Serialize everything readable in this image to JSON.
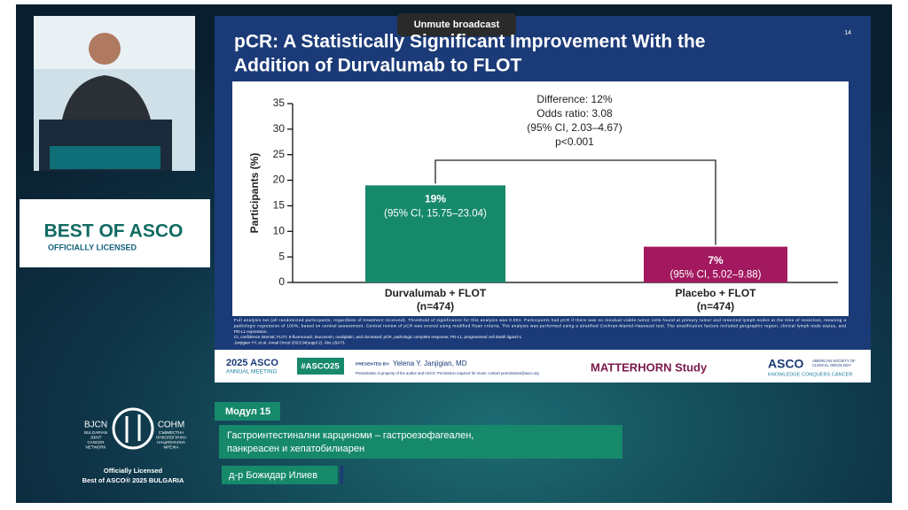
{
  "button": "Unmute broadcast",
  "slide": {
    "title_lines": [
      "pCR: A Statistically Significant Improvement With the",
      "Addition of Durvalumab to FLOT"
    ],
    "number": "14",
    "footnotes": [
      "Full analysis set (all randomized participants, regardless of treatment received). Threshold of significance for this analysis was 0.001. Participants had pCR if there was no residual viable tumor cells found at primary tumor and resected lymph nodes at the time of resection, meaning a",
      "pathologic regression of 100%, based on central assessment. Central review of pCR was scored using modified Ryan criteria. The analysis was performed using a stratified Cochran-Mantel-Haenszel test. The stratification factors included geographic region, clinical lymph node status, and",
      "PD-L1 expression.",
      "CI, confidence interval; FLOT, 5-fluorouracil, leucovorin, oxaliplatin, and docetaxel; pCR, pathologic complete response; PD-L1, programmed cell death ligand-1.",
      "Janjigian YY, et al. Annal Oncol 2023;34(suppl 2). Abs LBA73."
    ],
    "footer": {
      "meeting_year": "2025 ASCO",
      "meeting": "ANNUAL MEETING",
      "hashtag": "#ASCO25",
      "presented_by": "PRESENTED BY:",
      "presenter": "Yelena Y. Janjigian, MD",
      "notice": "Presentation is property of the author and ASCO. Permission required for reuse; contact permissions@asco.org",
      "study": "MATTERHORN Study",
      "asco": "ASCO",
      "asco_sub1": "AMERICAN SOCIETY OF",
      "asco_sub2": "CLINICAL ONCOLOGY",
      "tagline": "KNOWLEDGE CONQUERS CANCER"
    }
  },
  "chart_data": {
    "type": "bar",
    "ylabel": "Participants (%)",
    "categories": [
      "Durvalumab + FLOT",
      "Placebo + FLOT"
    ],
    "category_sublabels": [
      "(n=474)",
      "(n=474)"
    ],
    "values": [
      19,
      7
    ],
    "value_labels": [
      "19%",
      "7%"
    ],
    "ci_labels": [
      "(95% CI, 15.75–23.04)",
      "(95% CI, 5.02–9.88)"
    ],
    "colors": [
      "#17896b",
      "#a3195f"
    ],
    "ylim": [
      0,
      35
    ],
    "yticks": [
      0,
      5,
      10,
      15,
      20,
      25,
      30,
      35
    ],
    "annotation": [
      "Difference: 12%",
      "Odds ratio: 3.08",
      "(95% CI, 2.03–4.67)",
      "p<0.001"
    ]
  },
  "sidebar": {
    "badge_title": "BEST OF ASCO",
    "badge_sub": "OFFICIALLY LICENSED",
    "bjcn": "BJCN",
    "bjcn_sub": [
      "BULGARIAN",
      "JOINT",
      "CANCER",
      "NETWORK"
    ],
    "sonm": "СОНМ",
    "sonm_sub": [
      "СЪВМЕСТНА",
      "ОНКОЛОГИЧНА",
      "НАЦИОНАЛНА",
      "МРЕЖА"
    ],
    "licensed": "Officially Licensed",
    "edition": "Best of ASCO® 2025 BULGARIA"
  },
  "lower_third": {
    "module": "Модул 15",
    "topic_lines": [
      "Гастроинтестинални карциноми – гастроезофагеален,",
      "панкреасен и хепатобилиарен"
    ],
    "speaker": "д-р Божидар Илиев"
  }
}
